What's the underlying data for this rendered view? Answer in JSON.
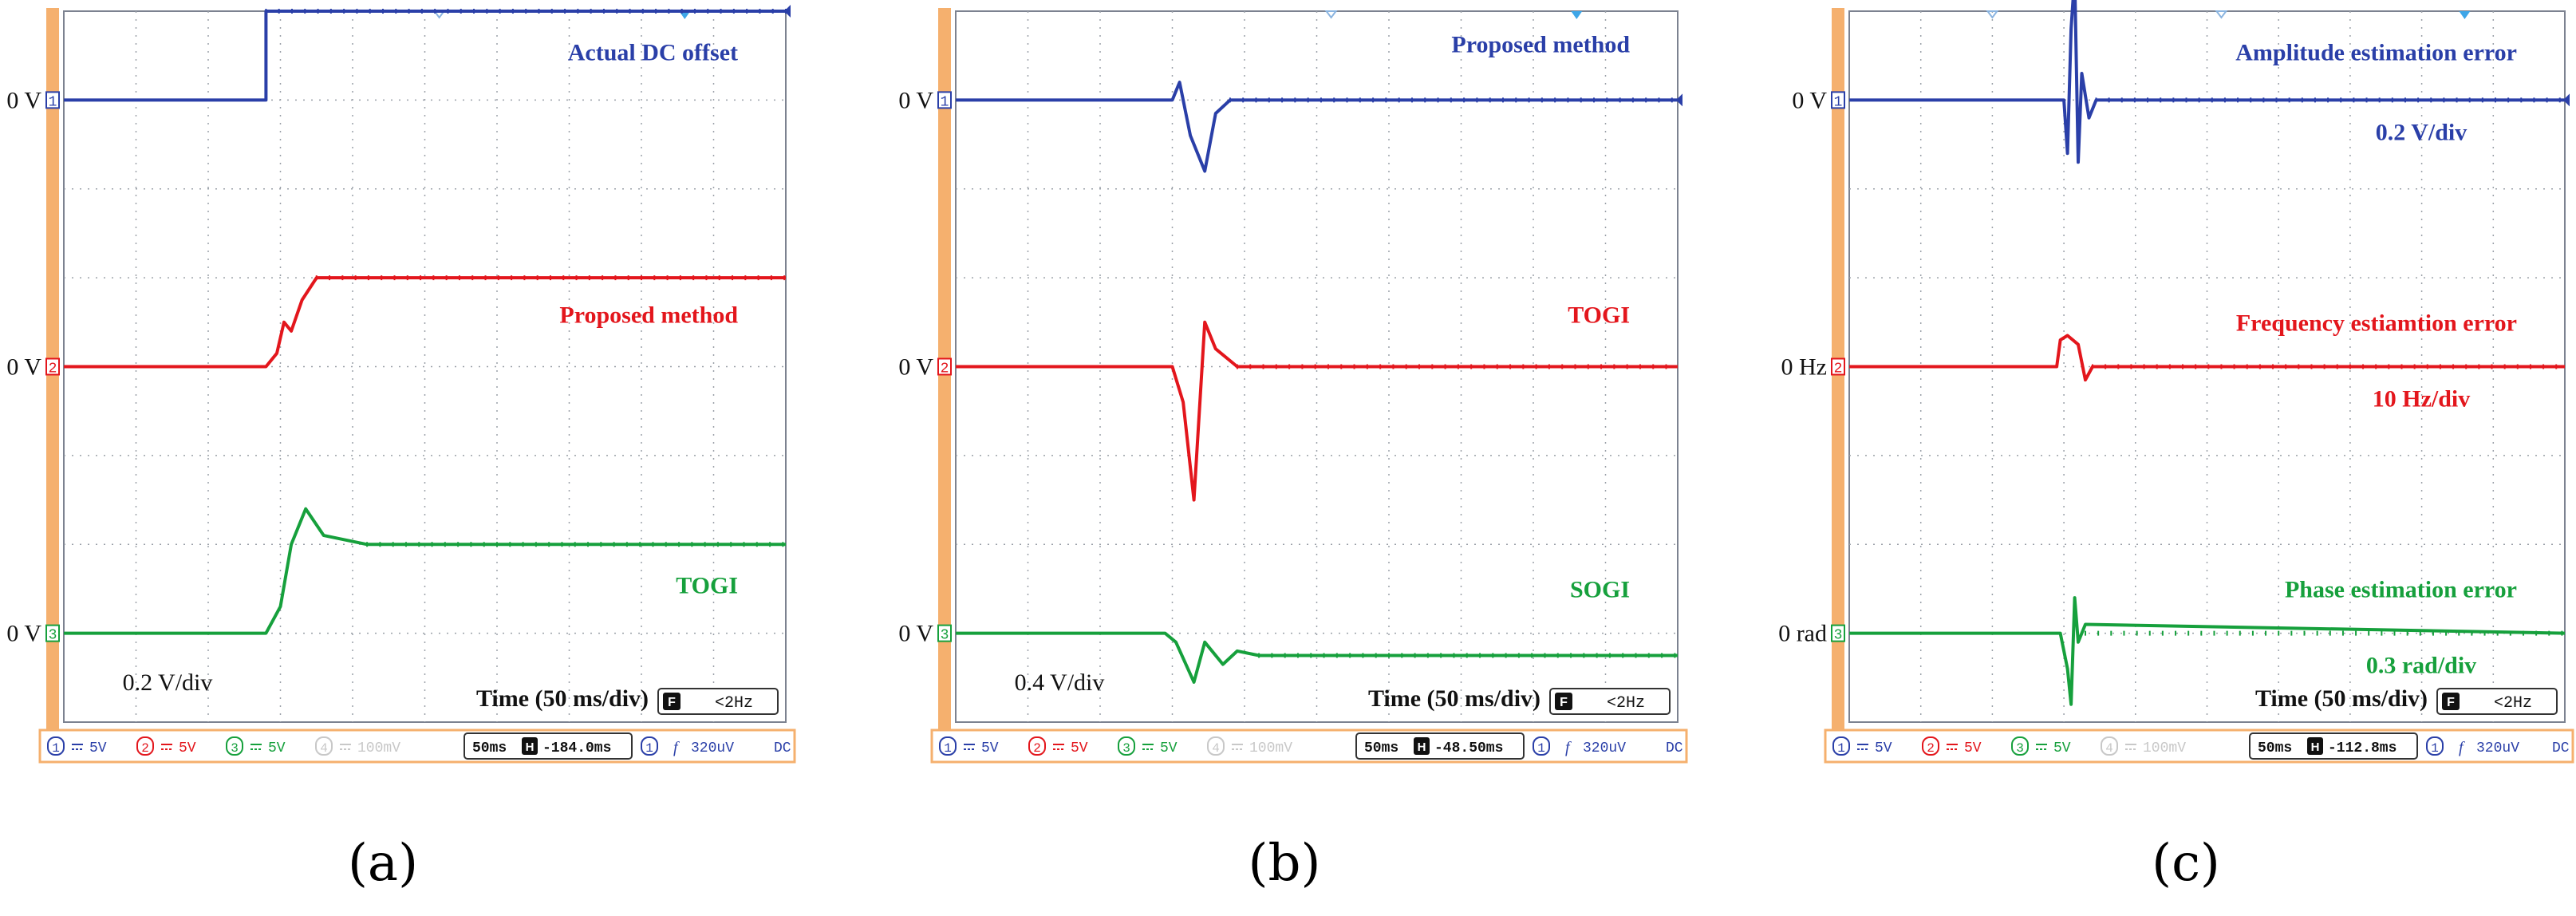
{
  "colors": {
    "ch1": "#2a3fa8",
    "ch2": "#e3161c",
    "ch3": "#16a03c",
    "ch4": "#c8c8c8",
    "frame": "#f5b06e",
    "grid": "#9aa0a8",
    "label_black": "#111111"
  },
  "status_bar": {
    "ch1": "1",
    "ch2": "2",
    "ch3": "3",
    "ch4": "4",
    "volts": "5V",
    "volts4": "100mV",
    "timebase": "50ms",
    "trigger_ch": "1",
    "trigger_level": "320uV",
    "coupling": "DC",
    "H_label": "H",
    "f_label": "f",
    "F_label": "F",
    "freq_limit": "<2Hz"
  },
  "panels": [
    {
      "caption": "(a)",
      "h_offset": "-184.0ms",
      "scale_note": "0.2 V/div",
      "time_label": "Time (50 ms/div)",
      "channels": [
        {
          "marker": "1",
          "zero_label": "0 V",
          "name": "Actual DC offset",
          "sub": ""
        },
        {
          "marker": "2",
          "zero_label": "0 V",
          "name": "Proposed method",
          "sub": ""
        },
        {
          "marker": "3",
          "zero_label": "0 V",
          "name": "TOGI",
          "sub": ""
        }
      ]
    },
    {
      "caption": "(b)",
      "h_offset": "-48.50ms",
      "scale_note": "0.4 V/div",
      "time_label": "Time (50 ms/div)",
      "channels": [
        {
          "marker": "1",
          "zero_label": "0 V",
          "name": "Proposed method",
          "sub": ""
        },
        {
          "marker": "2",
          "zero_label": "0 V",
          "name": "TOGI",
          "sub": ""
        },
        {
          "marker": "3",
          "zero_label": "0 V",
          "name": "SOGI",
          "sub": ""
        }
      ]
    },
    {
      "caption": "(c)",
      "h_offset": "-112.8ms",
      "scale_note": "",
      "time_label": "Time (50 ms/div)",
      "channels": [
        {
          "marker": "1",
          "zero_label": "0 V",
          "name": "Amplitude estimation error",
          "sub": "0.2 V/div"
        },
        {
          "marker": "2",
          "zero_label": "0 Hz",
          "name": "Frequency estiamtion error",
          "sub": "10 Hz/div"
        },
        {
          "marker": "3",
          "zero_label": "0 rad",
          "name": "Phase estimation error",
          "sub": "0.3 rad/div"
        }
      ]
    }
  ],
  "chart_data": [
    {
      "type": "line",
      "title": "",
      "xlabel": "Time (50 ms/div)",
      "ylabel": "0.2 V/div",
      "x_unit": "div",
      "xlim": [
        0,
        10
      ],
      "ylim": [
        -4,
        4
      ],
      "series": [
        {
          "name": "Actual DC offset",
          "x": [
            0,
            2.8,
            2.8,
            10
          ],
          "y": [
            3.0,
            3.0,
            4.0,
            4.0
          ]
        },
        {
          "name": "Proposed method",
          "x": [
            0,
            2.8,
            2.95,
            3.05,
            3.15,
            3.3,
            3.5,
            10
          ],
          "y": [
            0,
            0,
            0.15,
            0.5,
            0.4,
            0.75,
            1.0,
            1.0
          ]
        },
        {
          "name": "TOGI",
          "x": [
            0,
            2.8,
            3.0,
            3.15,
            3.35,
            3.6,
            4.2,
            10
          ],
          "y": [
            -3.0,
            -3.0,
            -2.7,
            -2.0,
            -1.6,
            -1.9,
            -2.0,
            -2.0
          ]
        }
      ]
    },
    {
      "type": "line",
      "title": "",
      "xlabel": "Time (50 ms/div)",
      "ylabel": "0.4 V/div",
      "x_unit": "div",
      "xlim": [
        0,
        10
      ],
      "ylim": [
        -4,
        4
      ],
      "series": [
        {
          "name": "Proposed method",
          "x": [
            0,
            3.0,
            3.1,
            3.25,
            3.45,
            3.6,
            3.8,
            10
          ],
          "y": [
            3.0,
            3.0,
            3.2,
            2.6,
            2.2,
            2.85,
            3.0,
            3.0
          ]
        },
        {
          "name": "TOGI",
          "x": [
            0,
            3.0,
            3.15,
            3.3,
            3.45,
            3.6,
            3.9,
            10
          ],
          "y": [
            0,
            0,
            -0.4,
            -1.5,
            0.5,
            0.2,
            0,
            0
          ]
        },
        {
          "name": "SOGI",
          "x": [
            0,
            2.9,
            3.05,
            3.3,
            3.45,
            3.7,
            3.9,
            4.2,
            10
          ],
          "y": [
            -3.0,
            -3.0,
            -3.1,
            -3.55,
            -3.1,
            -3.35,
            -3.2,
            -3.25,
            -3.25
          ]
        }
      ]
    },
    {
      "type": "line",
      "title": "",
      "xlabel": "Time (50 ms/div)",
      "ylabel": "",
      "x_unit": "div",
      "xlim": [
        0,
        10
      ],
      "ylim": [
        -4,
        4
      ],
      "series": [
        {
          "name": "Amplitude estimation error",
          "x": [
            0,
            3.0,
            3.05,
            3.1,
            3.15,
            3.2,
            3.25,
            3.35,
            3.45,
            10
          ],
          "y": [
            3.0,
            3.0,
            2.4,
            3.8,
            4.4,
            2.3,
            3.3,
            2.8,
            3.0,
            3.0
          ]
        },
        {
          "name": "Frequency estiamtion error",
          "x": [
            0,
            2.9,
            2.95,
            3.05,
            3.2,
            3.3,
            3.4,
            10
          ],
          "y": [
            0,
            0,
            0.3,
            0.35,
            0.25,
            -0.15,
            0,
            0
          ]
        },
        {
          "name": "Phase estimation error",
          "x": [
            0,
            2.95,
            3.05,
            3.1,
            3.15,
            3.2,
            3.25,
            3.3,
            10
          ],
          "y": [
            -3.0,
            -3.0,
            -3.4,
            -3.8,
            -2.6,
            -3.1,
            -3.0,
            -2.9,
            -3.0
          ]
        }
      ]
    }
  ]
}
